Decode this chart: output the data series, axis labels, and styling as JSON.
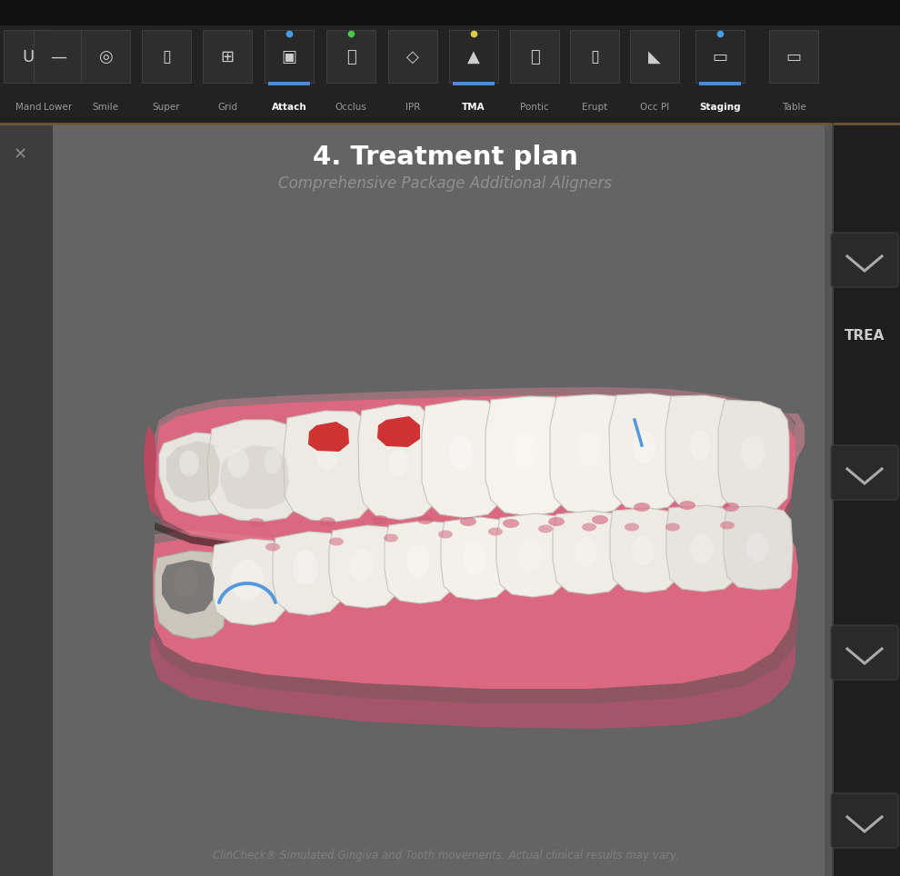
{
  "bg_dark": "#1a1a1a",
  "toolbar_bg": "#222222",
  "toolbar_border": "#6a5a30",
  "main_bg": "#646464",
  "right_panel_bg": "#1e1e1e",
  "left_panel_bg": "#3a3a3a",
  "title": "4. Treatment plan",
  "subtitle": "Comprehensive Package Additional Aligners",
  "footer": "ClinCheck® Simulated Gingiva and Tooth movements. Actual clinical results may vary.",
  "title_color": "#ffffff",
  "subtitle_color": "#909090",
  "footer_color": "#808080",
  "gum_main": "#d96880",
  "gum_light": "#e88898",
  "gum_dark": "#b84a60",
  "gum_shadow": "#a03050",
  "tooth_white": "#f4f0ea",
  "tooth_shadow": "#d8d0c4",
  "tooth_highlight": "#fdfcfa",
  "toolbar_items": [
    "Mand",
    "Lower",
    "Smile",
    "Super",
    "Grid",
    "Attach",
    "Occlus",
    "IPR",
    "TMA",
    "Pontic",
    "Erupt",
    "Occ Pl",
    "Staging",
    "Table"
  ],
  "active_items": [
    "Attach",
    "TMA",
    "Staging"
  ],
  "active_bar_color": "#5588cc",
  "dot_colors": {
    "Attach": "#4a9de0",
    "Occlus": "#44cc44",
    "TMA": "#ddcc44",
    "Staging": "#4a9de0"
  },
  "blue_line": "#5599dd",
  "red_attach": "#cc2222",
  "chevron_bg": "#2a2a2a",
  "chevron_color": "#aaaaaa",
  "trea_color": "#cccccc"
}
